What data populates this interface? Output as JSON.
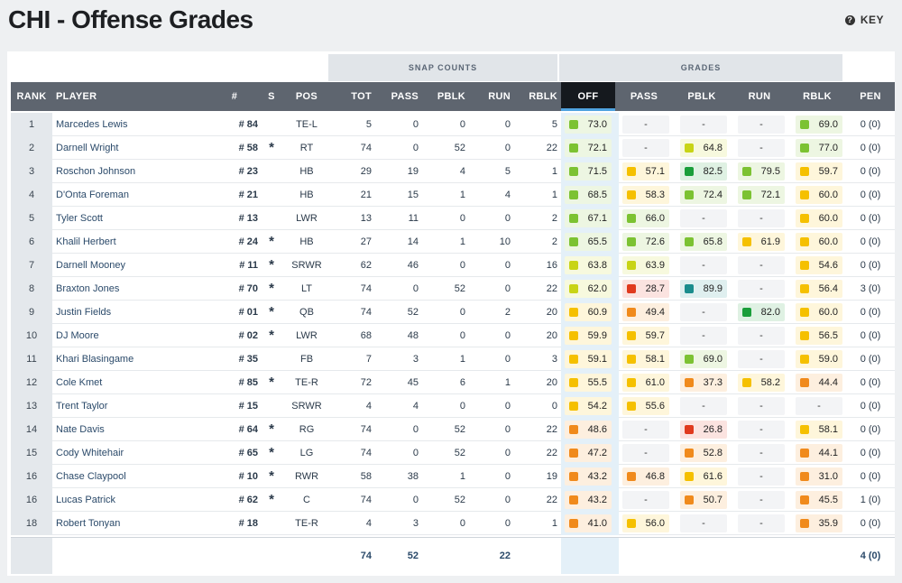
{
  "page": {
    "title": "CHI - Offense Grades",
    "key_label": "KEY"
  },
  "groups": {
    "snap_counts": "SNAP COUNTS",
    "grades": "GRADES"
  },
  "columns": [
    "RANK",
    "PLAYER",
    "#",
    "S",
    "POS",
    "TOT",
    "PASS",
    "PBLK",
    "RUN",
    "RBLK",
    "OFF",
    "PASS",
    "PBLK",
    "RUN",
    "RBLK",
    "PEN"
  ],
  "colors": {
    "elite": "#1a9e3a",
    "high": "#7cc232",
    "good": "#c8d416",
    "avg": "#f5c000",
    "below": "#f08a1c",
    "poor": "#e03a1e",
    "teal": "#1a8c8c",
    "header_bg": "#5e656f",
    "off_accent": "#4fa3e0"
  },
  "rows": [
    {
      "rank": "1",
      "player": "Marcedes Lewis",
      "num": "# 84",
      "s": "",
      "pos": "TE-L",
      "tot": "5",
      "pass": "0",
      "pblk": "0",
      "run": "0",
      "rblk": "5",
      "g_off": "73.0",
      "g_pass": "-",
      "g_pblk": "-",
      "g_run": "-",
      "g_rblk": "69.0",
      "pen": "0 (0)"
    },
    {
      "rank": "2",
      "player": "Darnell Wright",
      "num": "# 58",
      "s": "*",
      "pos": "RT",
      "tot": "74",
      "pass": "0",
      "pblk": "52",
      "run": "0",
      "rblk": "22",
      "g_off": "72.1",
      "g_pass": "-",
      "g_pblk": "64.8",
      "g_run": "-",
      "g_rblk": "77.0",
      "pen": "0 (0)"
    },
    {
      "rank": "3",
      "player": "Roschon Johnson",
      "num": "# 23",
      "s": "",
      "pos": "HB",
      "tot": "29",
      "pass": "19",
      "pblk": "4",
      "run": "5",
      "rblk": "1",
      "g_off": "71.5",
      "g_pass": "57.1",
      "g_pblk": "82.5",
      "g_run": "79.5",
      "g_rblk": "59.7",
      "pen": "0 (0)"
    },
    {
      "rank": "4",
      "player": "D'Onta Foreman",
      "num": "# 21",
      "s": "",
      "pos": "HB",
      "tot": "21",
      "pass": "15",
      "pblk": "1",
      "run": "4",
      "rblk": "1",
      "g_off": "68.5",
      "g_pass": "58.3",
      "g_pblk": "72.4",
      "g_run": "72.1",
      "g_rblk": "60.0",
      "pen": "0 (0)"
    },
    {
      "rank": "5",
      "player": "Tyler Scott",
      "num": "# 13",
      "s": "",
      "pos": "LWR",
      "tot": "13",
      "pass": "11",
      "pblk": "0",
      "run": "0",
      "rblk": "2",
      "g_off": "67.1",
      "g_pass": "66.0",
      "g_pblk": "-",
      "g_run": "-",
      "g_rblk": "60.0",
      "pen": "0 (0)"
    },
    {
      "rank": "6",
      "player": "Khalil Herbert",
      "num": "# 24",
      "s": "*",
      "pos": "HB",
      "tot": "27",
      "pass": "14",
      "pblk": "1",
      "run": "10",
      "rblk": "2",
      "g_off": "65.5",
      "g_pass": "72.6",
      "g_pblk": "65.8",
      "g_run": "61.9",
      "g_rblk": "60.0",
      "pen": "0 (0)"
    },
    {
      "rank": "7",
      "player": "Darnell Mooney",
      "num": "# 11",
      "s": "*",
      "pos": "SRWR",
      "tot": "62",
      "pass": "46",
      "pblk": "0",
      "run": "0",
      "rblk": "16",
      "g_off": "63.8",
      "g_pass": "63.9",
      "g_pblk": "-",
      "g_run": "-",
      "g_rblk": "54.6",
      "pen": "0 (0)"
    },
    {
      "rank": "8",
      "player": "Braxton Jones",
      "num": "# 70",
      "s": "*",
      "pos": "LT",
      "tot": "74",
      "pass": "0",
      "pblk": "52",
      "run": "0",
      "rblk": "22",
      "g_off": "62.0",
      "g_pass": "28.7",
      "g_pblk": "89.9",
      "g_run": "-",
      "g_rblk": "56.4",
      "pen": "3 (0)"
    },
    {
      "rank": "9",
      "player": "Justin Fields",
      "num": "# 01",
      "s": "*",
      "pos": "QB",
      "tot": "74",
      "pass": "52",
      "pblk": "0",
      "run": "2",
      "rblk": "20",
      "g_off": "60.9",
      "g_pass": "49.4",
      "g_pblk": "-",
      "g_run": "82.0",
      "g_rblk": "60.0",
      "pen": "0 (0)"
    },
    {
      "rank": "10",
      "player": "DJ Moore",
      "num": "# 02",
      "s": "*",
      "pos": "LWR",
      "tot": "68",
      "pass": "48",
      "pblk": "0",
      "run": "0",
      "rblk": "20",
      "g_off": "59.9",
      "g_pass": "59.7",
      "g_pblk": "-",
      "g_run": "-",
      "g_rblk": "56.5",
      "pen": "0 (0)"
    },
    {
      "rank": "11",
      "player": "Khari Blasingame",
      "num": "# 35",
      "s": "",
      "pos": "FB",
      "tot": "7",
      "pass": "3",
      "pblk": "1",
      "run": "0",
      "rblk": "3",
      "g_off": "59.1",
      "g_pass": "58.1",
      "g_pblk": "69.0",
      "g_run": "-",
      "g_rblk": "59.0",
      "pen": "0 (0)"
    },
    {
      "rank": "12",
      "player": "Cole Kmet",
      "num": "# 85",
      "s": "*",
      "pos": "TE-R",
      "tot": "72",
      "pass": "45",
      "pblk": "6",
      "run": "1",
      "rblk": "20",
      "g_off": "55.5",
      "g_pass": "61.0",
      "g_pblk": "37.3",
      "g_run": "58.2",
      "g_rblk": "44.4",
      "pen": "0 (0)"
    },
    {
      "rank": "13",
      "player": "Trent Taylor",
      "num": "# 15",
      "s": "",
      "pos": "SRWR",
      "tot": "4",
      "pass": "4",
      "pblk": "0",
      "run": "0",
      "rblk": "0",
      "g_off": "54.2",
      "g_pass": "55.6",
      "g_pblk": "-",
      "g_run": "-",
      "g_rblk": "-",
      "pen": "0 (0)"
    },
    {
      "rank": "14",
      "player": "Nate Davis",
      "num": "# 64",
      "s": "*",
      "pos": "RG",
      "tot": "74",
      "pass": "0",
      "pblk": "52",
      "run": "0",
      "rblk": "22",
      "g_off": "48.6",
      "g_pass": "-",
      "g_pblk": "26.8",
      "g_run": "-",
      "g_rblk": "58.1",
      "pen": "0 (0)"
    },
    {
      "rank": "15",
      "player": "Cody Whitehair",
      "num": "# 65",
      "s": "*",
      "pos": "LG",
      "tot": "74",
      "pass": "0",
      "pblk": "52",
      "run": "0",
      "rblk": "22",
      "g_off": "47.2",
      "g_pass": "-",
      "g_pblk": "52.8",
      "g_run": "-",
      "g_rblk": "44.1",
      "pen": "0 (0)"
    },
    {
      "rank": "16",
      "player": "Chase Claypool",
      "num": "# 10",
      "s": "*",
      "pos": "RWR",
      "tot": "58",
      "pass": "38",
      "pblk": "1",
      "run": "0",
      "rblk": "19",
      "g_off": "43.2",
      "g_pass": "46.8",
      "g_pblk": "61.6",
      "g_run": "-",
      "g_rblk": "31.0",
      "pen": "0 (0)"
    },
    {
      "rank": "16",
      "player": "Lucas Patrick",
      "num": "# 62",
      "s": "*",
      "pos": "C",
      "tot": "74",
      "pass": "0",
      "pblk": "52",
      "run": "0",
      "rblk": "22",
      "g_off": "43.2",
      "g_pass": "-",
      "g_pblk": "50.7",
      "g_run": "-",
      "g_rblk": "45.5",
      "pen": "1 (0)"
    },
    {
      "rank": "18",
      "player": "Robert Tonyan",
      "num": "# 18",
      "s": "",
      "pos": "TE-R",
      "tot": "4",
      "pass": "3",
      "pblk": "0",
      "run": "0",
      "rblk": "1",
      "g_off": "41.0",
      "g_pass": "56.0",
      "g_pblk": "-",
      "g_run": "-",
      "g_rblk": "35.9",
      "pen": "0 (0)"
    }
  ],
  "footer": {
    "tot": "74",
    "pass": "52",
    "rblk": "22",
    "pen": "4 (0)"
  }
}
